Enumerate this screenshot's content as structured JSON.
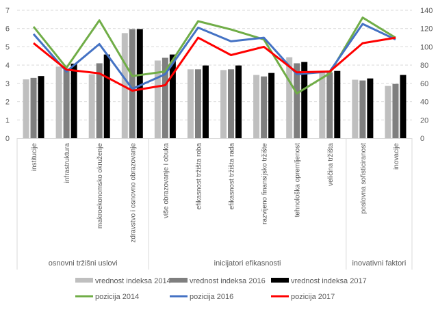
{
  "chart_data": {
    "type": "bar",
    "categories": [
      "institucije",
      "infrastruktura",
      "makroekonomsko okruženje",
      "zdravstvo i osnovno obrazovanje",
      "više obrazovanje i obuka",
      "efikasnost tržišta roba",
      "efikasnost tržišta rada",
      "razvijeno finansijsko tržište",
      "tehnološka opremljenost",
      "veličina tržišta",
      "poslovna sofisticiranost",
      "inovacije"
    ],
    "groups": [
      {
        "label": "osnovni tržišni uslovi",
        "count": 4
      },
      {
        "label": "inicijatori efikasnosti",
        "count": 6
      },
      {
        "label": "inovativni faktori",
        "count": 2
      }
    ],
    "left_axis": {
      "ylim": [
        0,
        7
      ],
      "ticks": [
        "0",
        "1",
        "2",
        "3",
        "4",
        "5",
        "6",
        "7"
      ]
    },
    "right_axis": {
      "ylim": [
        0,
        140
      ],
      "ticks": [
        "0",
        "20",
        "40",
        "60",
        "80",
        "100",
        "120",
        "140"
      ]
    },
    "grid": true,
    "legend_position": "bottom",
    "bar_series": [
      {
        "name": "vrednost indeksa 2014",
        "color": "#bfbfbf",
        "values": [
          3.22,
          3.92,
          3.5,
          5.75,
          4.25,
          3.77,
          3.73,
          3.46,
          4.43,
          3.6,
          3.2,
          2.86
        ]
      },
      {
        "name": "vrednost indeksa 2016",
        "color": "#7f7f7f",
        "values": [
          3.3,
          3.8,
          4.1,
          5.97,
          4.4,
          3.77,
          3.77,
          3.38,
          4.1,
          3.6,
          3.16,
          2.97
        ]
      },
      {
        "name": "vrednost indeksa 2017",
        "color": "#000000",
        "values": [
          3.4,
          4.08,
          4.58,
          5.97,
          4.58,
          3.98,
          3.98,
          3.57,
          4.17,
          3.68,
          3.27,
          3.46
        ]
      }
    ],
    "line_series": [
      {
        "name": "pozicija 2014",
        "color": "#70ad47",
        "values": [
          122,
          77,
          129,
          68,
          73,
          128,
          119,
          108,
          49,
          71,
          132,
          110
        ]
      },
      {
        "name": "pozicija 2016",
        "color": "#4472c4",
        "values": [
          114,
          73,
          103,
          54,
          70,
          121,
          106,
          110,
          70,
          73,
          125,
          108
        ]
      },
      {
        "name": "pozicija 2017",
        "color": "#ff0000",
        "values": [
          104,
          75,
          71,
          52,
          58,
          110,
          91,
          100,
          72,
          73,
          104,
          110
        ]
      }
    ]
  }
}
